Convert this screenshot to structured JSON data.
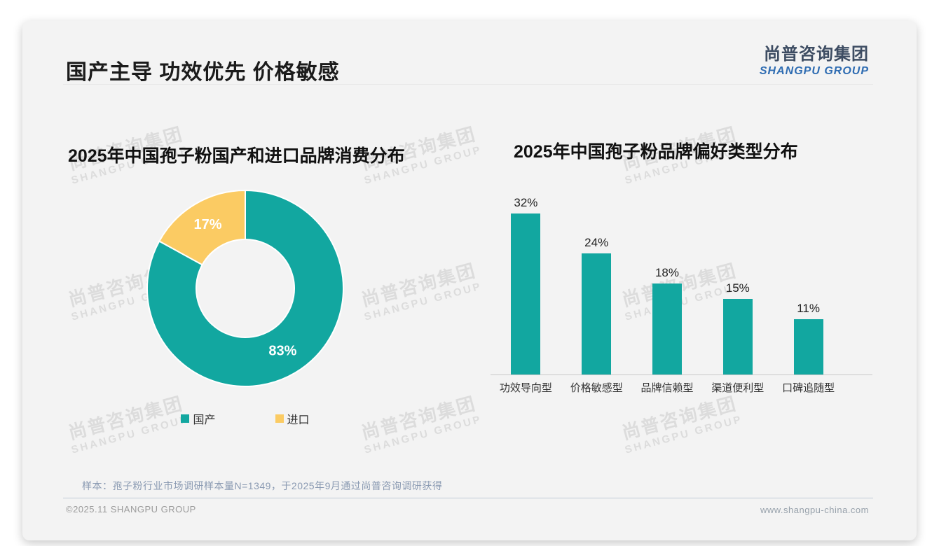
{
  "page": {
    "title": "国产主导 功效优先 价格敏感",
    "logo": {
      "cn": "尚普咨询集团",
      "en": "SHANGPU GROUP"
    },
    "watermark": {
      "cn": "尚普咨询集团",
      "en": "SHANGPU GROUP"
    },
    "footer": {
      "sample_note": "样本：孢子粉行业市场调研样本量N=1349，于2025年9月通过尚普咨询调研获得",
      "copyright": "©2025.11 SHANGPU GROUP",
      "website": "www.shangpu-china.com"
    }
  },
  "colors": {
    "teal": "#12a7a0",
    "yellow": "#fbcb63"
  },
  "chart_data": [
    {
      "type": "pie",
      "title": "2025年中国孢子粉国产和进口品牌消费分布",
      "labels": [
        "国产",
        "进口"
      ],
      "values": [
        83,
        17
      ],
      "value_labels": [
        "83%",
        "17%"
      ],
      "colors": [
        "#12a7a0",
        "#fbcb63"
      ],
      "donut": true,
      "start_angle_deg_clockwise_from_top": 0,
      "legend_position": "bottom"
    },
    {
      "type": "bar",
      "title": "2025年中国孢子粉品牌偏好类型分布",
      "categories": [
        "功效导向型",
        "价格敏感型",
        "品牌信赖型",
        "渠道便利型",
        "口碑追随型"
      ],
      "values": [
        32,
        24,
        18,
        15,
        11
      ],
      "value_labels": [
        "32%",
        "24%",
        "18%",
        "15%",
        "11%"
      ],
      "bar_color": "#12a7a0",
      "ylim": [
        0,
        35
      ],
      "grid": false
    }
  ]
}
